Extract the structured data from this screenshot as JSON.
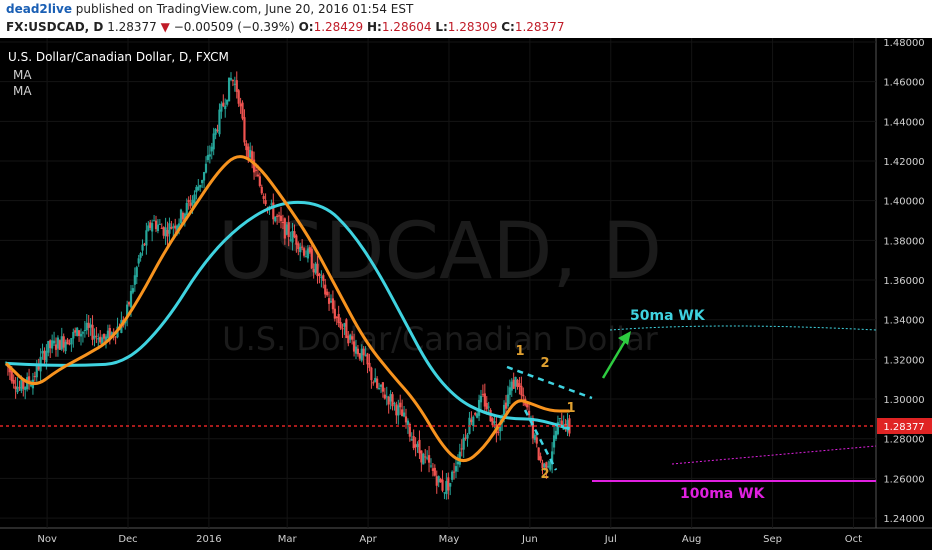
{
  "header": {
    "author": "dead2live",
    "published_text": "published on TradingView.com, June 20, 2016 01:54 EST",
    "symbol": "FX:USDCAD, D",
    "last": "1.28377",
    "change": "−0.00509 (−0.39%)",
    "open_label": "O:",
    "open": "1.28429",
    "high_label": "H:",
    "high": "1.28604",
    "low_label": "L:",
    "low": "1.28309",
    "close_label": "C:",
    "close": "1.28377"
  },
  "legend": {
    "title": "U.S. Dollar/Canadian Dollar, D, FXCM",
    "ma1": "MA",
    "ma2": "MA"
  },
  "watermark": {
    "big": "USDCAD, D",
    "small": "U.S. Dollar/Canadian Dollar"
  },
  "annotations": {
    "ma50": "50ma WK",
    "ma100": "100ma WK",
    "wave_top_1": "1",
    "wave_top_2": "2",
    "wave_bottom_2": "2",
    "wave_right": "1"
  },
  "colors": {
    "up": "#26a69a",
    "down": "#ef5350",
    "ma_fast": "#f7931e",
    "ma_slow": "#3fd3e0",
    "price_line": "#e02424",
    "green_arrow": "#2ecc40",
    "magenta": "#e020e0",
    "wave_label": "#e0a030"
  },
  "chart_data": {
    "type": "candlestick",
    "title": "U.S. Dollar/Canadian Dollar, D, FXCM",
    "ylim": [
      1.235,
      1.482
    ],
    "y_ticks": [
      "1.48000",
      "1.46000",
      "1.44000",
      "1.42000",
      "1.40000",
      "1.38000",
      "1.36000",
      "1.34000",
      "1.32000",
      "1.30000",
      "1.28000",
      "1.26000",
      "1.24000"
    ],
    "y_tick_values": [
      1.48,
      1.46,
      1.44,
      1.42,
      1.4,
      1.38,
      1.36,
      1.34,
      1.32,
      1.3,
      1.28,
      1.26,
      1.24
    ],
    "x_ticks": [
      "Nov",
      "Dec",
      "2016",
      "Mar",
      "Apr",
      "May",
      "Jun",
      "Jul",
      "Aug",
      "Sep",
      "Oct"
    ],
    "x_tick_days": [
      31,
      92,
      153,
      212,
      273,
      334,
      395,
      456,
      517,
      578,
      639
    ],
    "last_price": 1.28377,
    "last_price_label": "1.28377",
    "close_series": [
      {
        "day": 0,
        "price": 1.318
      },
      {
        "day": 10,
        "price": 1.305
      },
      {
        "day": 20,
        "price": 1.31
      },
      {
        "day": 30,
        "price": 1.325
      },
      {
        "day": 45,
        "price": 1.33
      },
      {
        "day": 60,
        "price": 1.335
      },
      {
        "day": 75,
        "price": 1.33
      },
      {
        "day": 90,
        "price": 1.34
      },
      {
        "day": 100,
        "price": 1.37
      },
      {
        "day": 110,
        "price": 1.39
      },
      {
        "day": 120,
        "price": 1.385
      },
      {
        "day": 130,
        "price": 1.39
      },
      {
        "day": 140,
        "price": 1.4
      },
      {
        "day": 150,
        "price": 1.415
      },
      {
        "day": 160,
        "price": 1.44
      },
      {
        "day": 170,
        "price": 1.462
      },
      {
        "day": 175,
        "price": 1.455
      },
      {
        "day": 180,
        "price": 1.43
      },
      {
        "day": 190,
        "price": 1.41
      },
      {
        "day": 200,
        "price": 1.395
      },
      {
        "day": 210,
        "price": 1.385
      },
      {
        "day": 220,
        "price": 1.38
      },
      {
        "day": 230,
        "price": 1.37
      },
      {
        "day": 240,
        "price": 1.355
      },
      {
        "day": 250,
        "price": 1.34
      },
      {
        "day": 260,
        "price": 1.33
      },
      {
        "day": 270,
        "price": 1.32
      },
      {
        "day": 280,
        "price": 1.305
      },
      {
        "day": 290,
        "price": 1.3
      },
      {
        "day": 300,
        "price": 1.29
      },
      {
        "day": 310,
        "price": 1.275
      },
      {
        "day": 320,
        "price": 1.265
      },
      {
        "day": 330,
        "price": 1.255
      },
      {
        "day": 335,
        "price": 1.258
      },
      {
        "day": 340,
        "price": 1.27
      },
      {
        "day": 350,
        "price": 1.29
      },
      {
        "day": 360,
        "price": 1.3
      },
      {
        "day": 370,
        "price": 1.285
      },
      {
        "day": 380,
        "price": 1.305
      },
      {
        "day": 385,
        "price": 1.31
      },
      {
        "day": 390,
        "price": 1.298
      },
      {
        "day": 395,
        "price": 1.29
      },
      {
        "day": 400,
        "price": 1.275
      },
      {
        "day": 405,
        "price": 1.265
      },
      {
        "day": 410,
        "price": 1.27
      },
      {
        "day": 415,
        "price": 1.285
      },
      {
        "day": 420,
        "price": 1.29
      },
      {
        "day": 425,
        "price": 1.284
      }
    ],
    "ma_fast": [
      {
        "day": 0,
        "price": 1.318
      },
      {
        "day": 20,
        "price": 1.305
      },
      {
        "day": 40,
        "price": 1.315
      },
      {
        "day": 60,
        "price": 1.322
      },
      {
        "day": 80,
        "price": 1.33
      },
      {
        "day": 100,
        "price": 1.35
      },
      {
        "day": 120,
        "price": 1.375
      },
      {
        "day": 140,
        "price": 1.395
      },
      {
        "day": 160,
        "price": 1.415
      },
      {
        "day": 175,
        "price": 1.424
      },
      {
        "day": 190,
        "price": 1.418
      },
      {
        "day": 210,
        "price": 1.4
      },
      {
        "day": 230,
        "price": 1.38
      },
      {
        "day": 250,
        "price": 1.355
      },
      {
        "day": 270,
        "price": 1.33
      },
      {
        "day": 290,
        "price": 1.313
      },
      {
        "day": 310,
        "price": 1.298
      },
      {
        "day": 330,
        "price": 1.275
      },
      {
        "day": 345,
        "price": 1.267
      },
      {
        "day": 360,
        "price": 1.275
      },
      {
        "day": 375,
        "price": 1.29
      },
      {
        "day": 385,
        "price": 1.3
      },
      {
        "day": 395,
        "price": 1.298
      },
      {
        "day": 410,
        "price": 1.294
      },
      {
        "day": 425,
        "price": 1.294
      }
    ],
    "ma_slow": [
      {
        "day": 0,
        "price": 1.318
      },
      {
        "day": 30,
        "price": 1.317
      },
      {
        "day": 60,
        "price": 1.317
      },
      {
        "day": 90,
        "price": 1.318
      },
      {
        "day": 120,
        "price": 1.338
      },
      {
        "day": 150,
        "price": 1.37
      },
      {
        "day": 180,
        "price": 1.39
      },
      {
        "day": 210,
        "price": 1.4
      },
      {
        "day": 240,
        "price": 1.398
      },
      {
        "day": 260,
        "price": 1.385
      },
      {
        "day": 280,
        "price": 1.365
      },
      {
        "day": 300,
        "price": 1.34
      },
      {
        "day": 320,
        "price": 1.315
      },
      {
        "day": 340,
        "price": 1.3
      },
      {
        "day": 360,
        "price": 1.293
      },
      {
        "day": 380,
        "price": 1.29
      },
      {
        "day": 400,
        "price": 1.29
      },
      {
        "day": 425,
        "price": 1.285
      }
    ]
  }
}
